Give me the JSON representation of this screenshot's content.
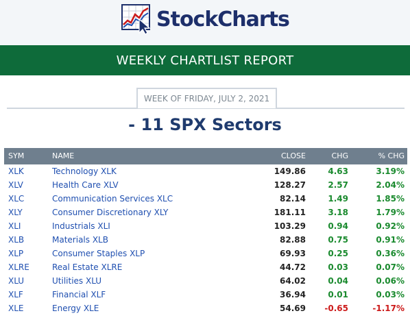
{
  "brand": {
    "name": "StockCharts"
  },
  "banner": {
    "title": "WEEKLY CHARTLIST REPORT"
  },
  "week": {
    "label": "WEEK OF FRIDAY, JULY 2, 2021"
  },
  "section": {
    "title": "- 11 SPX Sectors"
  },
  "table": {
    "headers": {
      "sym": "SYM",
      "name": "NAME",
      "close": "CLOSE",
      "chg": "CHG",
      "pct": "% CHG"
    },
    "rows": [
      {
        "sym": "XLK",
        "name": "Technology XLK",
        "close": "149.86",
        "chg": "4.63",
        "pct": "3.19%",
        "dir": "pos"
      },
      {
        "sym": "XLV",
        "name": "Health Care XLV",
        "close": "128.27",
        "chg": "2.57",
        "pct": "2.04%",
        "dir": "pos"
      },
      {
        "sym": "XLC",
        "name": "Communication Services XLC",
        "close": "82.14",
        "chg": "1.49",
        "pct": "1.85%",
        "dir": "pos"
      },
      {
        "sym": "XLY",
        "name": "Consumer Discretionary XLY",
        "close": "181.11",
        "chg": "3.18",
        "pct": "1.79%",
        "dir": "pos"
      },
      {
        "sym": "XLI",
        "name": "Industrials XLI",
        "close": "103.29",
        "chg": "0.94",
        "pct": "0.92%",
        "dir": "pos"
      },
      {
        "sym": "XLB",
        "name": "Materials XLB",
        "close": "82.88",
        "chg": "0.75",
        "pct": "0.91%",
        "dir": "pos"
      },
      {
        "sym": "XLP",
        "name": "Consumer Staples XLP",
        "close": "69.93",
        "chg": "0.25",
        "pct": "0.36%",
        "dir": "pos"
      },
      {
        "sym": "XLRE",
        "name": "Real Estate XLRE",
        "close": "44.72",
        "chg": "0.03",
        "pct": "0.07%",
        "dir": "pos"
      },
      {
        "sym": "XLU",
        "name": "Utilities XLU",
        "close": "64.02",
        "chg": "0.04",
        "pct": "0.06%",
        "dir": "pos"
      },
      {
        "sym": "XLF",
        "name": "Financial XLF",
        "close": "36.94",
        "chg": "0.01",
        "pct": "0.03%",
        "dir": "pos"
      },
      {
        "sym": "XLE",
        "name": "Energy XLE",
        "close": "54.69",
        "chg": "-0.65",
        "pct": "-1.17%",
        "dir": "neg"
      }
    ]
  },
  "colors": {
    "banner": "#0e6b3a",
    "header_bg": "#f3f6f9",
    "table_header": "#6f7f8e",
    "link": "#1f4fb0",
    "positive": "#1a8a2e",
    "negative": "#cc1a1a",
    "title": "#1f3b6e"
  },
  "icons": {
    "logo": "chart-cursor-logo-icon"
  }
}
